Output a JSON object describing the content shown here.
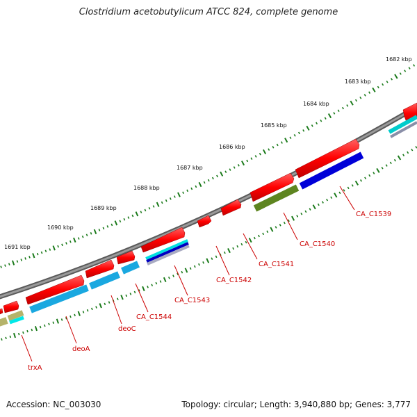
{
  "title": "Clostridium acetobutylicum ATCC 824, complete genome",
  "footer": {
    "accession": "Accession: NC_003030",
    "summary": "Topology: circular; Length: 3,940,880 bp; Genes: 3,777"
  },
  "scale_labels": [
    "1682 kbp",
    "1683 kbp",
    "1684 kbp",
    "1685 kbp",
    "1686 kbp",
    "1687 kbp",
    "1688 kbp",
    "1689 kbp",
    "1690 kbp",
    "1691 kbp"
  ],
  "gene_labels": [
    "CA_C1539",
    "CA_C1540",
    "CA_C1541",
    "CA_C1542",
    "CA_C1543",
    "CA_C1544",
    "deoC",
    "deoA",
    "trxA"
  ],
  "colors": {
    "backbone": "#808080",
    "tick": "#1a7a1a",
    "cds_forward": "#ff0000",
    "label": "#cc0000",
    "cog_light_blue": "#1aa8e0",
    "cog_cyan": "#00e5e5",
    "cog_blue": "#0000e0",
    "cog_olive": "#6b8e23",
    "cog_khaki": "#b5b36a"
  }
}
